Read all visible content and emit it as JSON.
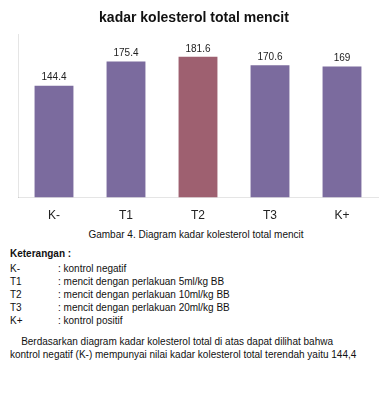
{
  "chart_data": {
    "type": "bar",
    "title": "kadar kolesterol total mencit",
    "categories": [
      "K-",
      "T1",
      "T2",
      "T3",
      "K+"
    ],
    "values": [
      144.4,
      175.4,
      181.6,
      170.6,
      169
    ],
    "colors": [
      "#7b6b9e",
      "#7b6b9e",
      "#9e6070",
      "#7b6b9e",
      "#7b6b9e"
    ],
    "ylim": [
      0,
      210
    ],
    "grid": false,
    "data_labels": true,
    "tick_labels": "x",
    "caption": "Gambar 4. Diagram kadar kolesterol total mencit",
    "notes_title": "Keterangan :",
    "notes": [
      [
        "K-",
        ": kontrol negatif"
      ],
      [
        "T1",
        ": mencit dengan perlakuan 5ml/kg BB"
      ],
      [
        "T2",
        ": mencit dengan perlakuan 10ml/kg BB"
      ],
      [
        "T3",
        ": mencit dengan perlakuan 20ml/kg BB"
      ],
      [
        "K+",
        ": kontrol positif"
      ]
    ],
    "paragraph": [
      "    Berdasarkan diagram kadar kolesterol total di atas dapat dilihat bahwa",
      "kontrol negatif (K-) mempunyai nilai kadar kolesterol total terendah yaitu 144,4"
    ]
  }
}
